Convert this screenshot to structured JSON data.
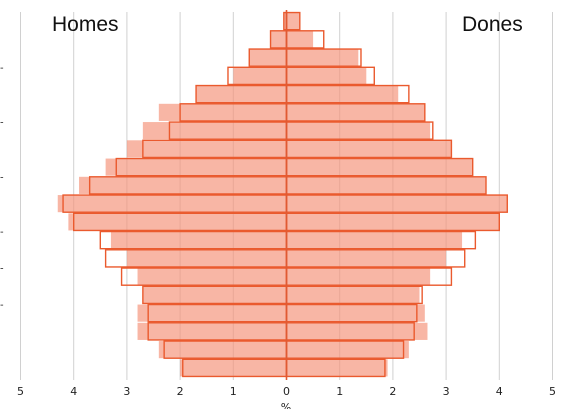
{
  "chart_data": {
    "type": "bar",
    "orientation": "horizontal",
    "layout": "population-pyramid",
    "left_title": "Homes",
    "right_title": "Dones",
    "xlabel": "%",
    "x_ticks": [
      "5",
      "4",
      "3",
      "2",
      "1",
      "0",
      "1",
      "2",
      "3",
      "4",
      "5"
    ],
    "xlim": [
      -5,
      5
    ],
    "y_tick_marks": [
      "-",
      "-",
      "-",
      "-",
      "-",
      "-"
    ],
    "row_count": 20,
    "series": [
      {
        "style": "filled",
        "color": "#f4937a",
        "left_values": [
          0.05,
          0.3,
          0.7,
          1.0,
          1.7,
          2.4,
          2.7,
          3.0,
          3.4,
          3.9,
          4.3,
          4.1,
          3.3,
          3.0,
          2.8,
          2.7,
          2.8,
          2.8,
          2.4,
          2.0
        ],
        "right_values": [
          0.25,
          0.5,
          1.35,
          1.5,
          2.1,
          2.6,
          2.7,
          3.1,
          3.5,
          3.75,
          4.15,
          4.0,
          3.3,
          3.0,
          2.7,
          2.5,
          2.6,
          2.65,
          2.3,
          1.9
        ]
      },
      {
        "style": "outline",
        "color": "#ea5a2e",
        "left_values": [
          0.05,
          0.3,
          0.7,
          1.1,
          1.7,
          2.0,
          2.2,
          2.7,
          3.2,
          3.7,
          4.2,
          4.0,
          3.5,
          3.4,
          3.1,
          2.7,
          2.6,
          2.6,
          2.3,
          1.95
        ],
        "right_values": [
          0.25,
          0.7,
          1.4,
          1.65,
          2.3,
          2.6,
          2.75,
          3.1,
          3.5,
          3.75,
          4.15,
          4.0,
          3.55,
          3.35,
          3.1,
          2.55,
          2.45,
          2.4,
          2.2,
          1.85
        ]
      }
    ]
  }
}
